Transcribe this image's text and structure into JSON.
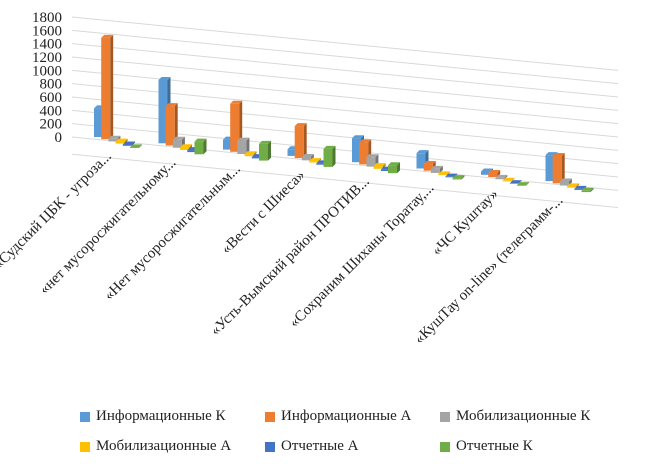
{
  "chart_data": {
    "type": "bar",
    "title": "",
    "xlabel": "",
    "ylabel": "",
    "ylim": [
      0,
      1800
    ],
    "yticks": [
      0,
      200,
      400,
      600,
      800,
      1000,
      1200,
      1400,
      1600,
      1800
    ],
    "grid": true,
    "legend_position": "bottom",
    "categories": [
      "«Судский ЦБК - угроза...",
      "«нет мусоросжигательному...",
      "«Нет мусоросжигательным...",
      "«Вести с Шиеса»",
      "«Усть-Вымский район ПРОТИВ...",
      "«Сохраним Шиханы Торатау,...",
      "«ЧС Куштау»",
      "«КушТау on-line» (телеграмм-..."
    ],
    "series": [
      {
        "name": "Информационные К",
        "color": "#5B9BD5",
        "values": [
          430,
          950,
          150,
          100,
          360,
          230,
          50,
          390
        ]
      },
      {
        "name": "Информационные А",
        "color": "#ED7D31",
        "values": [
          1520,
          590,
          720,
          480,
          330,
          100,
          60,
          410
        ]
      },
      {
        "name": "Мобилизационные К",
        "color": "#A5A5A5",
        "values": [
          40,
          120,
          200,
          50,
          140,
          60,
          20,
          60
        ]
      },
      {
        "name": "Мобилизационные А",
        "color": "#FFC000",
        "values": [
          30,
          40,
          30,
          20,
          40,
          10,
          10,
          20
        ]
      },
      {
        "name": "Отчетные А",
        "color": "#4472C4",
        "values": [
          20,
          30,
          20,
          20,
          20,
          10,
          5,
          15
        ]
      },
      {
        "name": "Отчетные К",
        "color": "#70AD47",
        "values": [
          10,
          190,
          250,
          270,
          120,
          20,
          10,
          20
        ]
      }
    ]
  }
}
